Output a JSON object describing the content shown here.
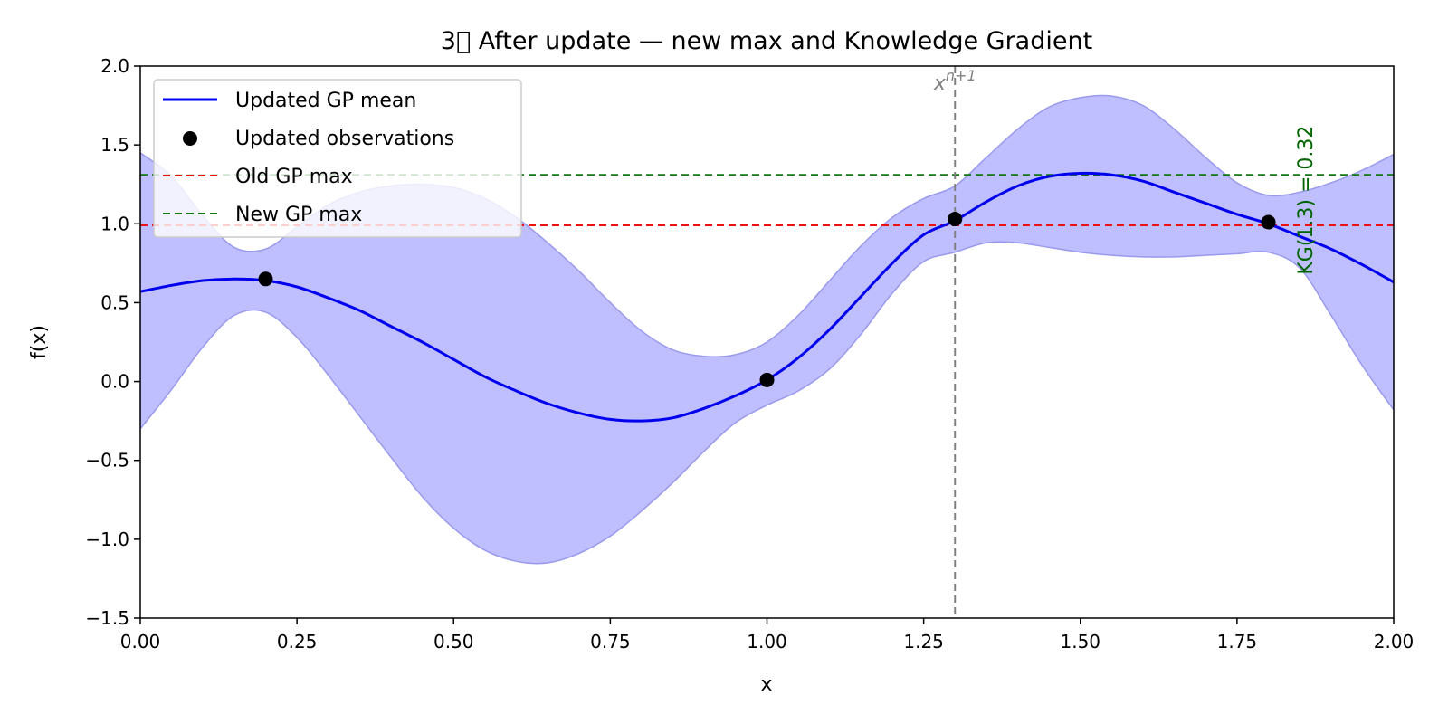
{
  "chart_data": {
    "type": "line",
    "title": "3⃣ After update — new max and Knowledge Gradient",
    "xlabel": "x",
    "ylabel": "f(x)",
    "xlim": [
      0.0,
      2.0
    ],
    "ylim": [
      -1.5,
      2.0
    ],
    "x_ticks": [
      "0.00",
      "0.25",
      "0.50",
      "0.75",
      "1.00",
      "1.25",
      "1.50",
      "1.75",
      "2.00"
    ],
    "x_tick_values": [
      0.0,
      0.25,
      0.5,
      0.75,
      1.0,
      1.25,
      1.5,
      1.75,
      2.0
    ],
    "y_ticks": [
      "−1.5",
      "−1.0",
      "−0.5",
      "0.0",
      "0.5",
      "1.0",
      "1.5",
      "2.0"
    ],
    "y_tick_values": [
      -1.5,
      -1.0,
      -0.5,
      0.0,
      0.5,
      1.0,
      1.5,
      2.0
    ],
    "grid": false,
    "legend_position": "upper-left",
    "legend": [
      {
        "label": "Updated GP mean",
        "kind": "line",
        "color": "#0000ee"
      },
      {
        "label": "Updated observations",
        "kind": "marker",
        "color": "#000000"
      },
      {
        "label": "Old GP max",
        "kind": "dashed",
        "color": "#ee1111"
      },
      {
        "label": "New GP max",
        "kind": "dashed",
        "color": "#117711"
      }
    ],
    "series": [
      {
        "name": "Updated GP mean",
        "color": "#0000ee",
        "x": [
          0.0,
          0.05,
          0.1,
          0.15,
          0.2,
          0.25,
          0.3,
          0.35,
          0.4,
          0.45,
          0.5,
          0.55,
          0.6,
          0.65,
          0.7,
          0.75,
          0.8,
          0.85,
          0.9,
          0.95,
          1.0,
          1.05,
          1.1,
          1.15,
          1.2,
          1.25,
          1.3,
          1.35,
          1.4,
          1.45,
          1.5,
          1.55,
          1.6,
          1.65,
          1.7,
          1.75,
          1.8,
          1.85,
          1.9,
          1.95,
          2.0
        ],
        "y": [
          0.57,
          0.61,
          0.64,
          0.65,
          0.64,
          0.6,
          0.53,
          0.45,
          0.35,
          0.25,
          0.14,
          0.03,
          -0.06,
          -0.14,
          -0.2,
          -0.24,
          -0.25,
          -0.23,
          -0.17,
          -0.09,
          0.01,
          0.15,
          0.33,
          0.54,
          0.75,
          0.93,
          1.02,
          1.14,
          1.24,
          1.3,
          1.32,
          1.31,
          1.27,
          1.2,
          1.13,
          1.06,
          1.0,
          0.92,
          0.84,
          0.74,
          0.63
        ]
      }
    ],
    "band": {
      "name": "confidence band",
      "color": "#bfbfff",
      "x": [
        0.0,
        0.05,
        0.1,
        0.15,
        0.2,
        0.25,
        0.3,
        0.35,
        0.4,
        0.45,
        0.5,
        0.55,
        0.6,
        0.65,
        0.7,
        0.75,
        0.8,
        0.85,
        0.9,
        0.95,
        1.0,
        1.05,
        1.1,
        1.15,
        1.2,
        1.25,
        1.3,
        1.35,
        1.4,
        1.45,
        1.5,
        1.55,
        1.6,
        1.65,
        1.7,
        1.75,
        1.8,
        1.85,
        1.9,
        1.95,
        2.0
      ],
      "upper": [
        1.45,
        1.3,
        1.05,
        0.85,
        0.84,
        0.98,
        1.12,
        1.2,
        1.24,
        1.25,
        1.23,
        1.16,
        1.04,
        0.88,
        0.7,
        0.5,
        0.32,
        0.2,
        0.16,
        0.17,
        0.25,
        0.42,
        0.64,
        0.86,
        1.04,
        1.16,
        1.24,
        1.42,
        1.6,
        1.74,
        1.8,
        1.81,
        1.75,
        1.6,
        1.42,
        1.26,
        1.18,
        1.2,
        1.26,
        1.34,
        1.44
      ],
      "lower": [
        -0.3,
        -0.05,
        0.22,
        0.42,
        0.44,
        0.28,
        0.04,
        -0.22,
        -0.48,
        -0.73,
        -0.93,
        -1.07,
        -1.14,
        -1.15,
        -1.09,
        -0.98,
        -0.82,
        -0.64,
        -0.44,
        -0.26,
        -0.15,
        -0.06,
        0.08,
        0.3,
        0.56,
        0.76,
        0.82,
        0.88,
        0.88,
        0.85,
        0.82,
        0.8,
        0.79,
        0.79,
        0.8,
        0.81,
        0.82,
        0.72,
        0.42,
        0.1,
        -0.18
      ]
    },
    "observations": {
      "name": "Updated observations",
      "x": [
        0.2,
        1.0,
        1.3,
        1.8
      ],
      "y": [
        0.65,
        0.01,
        1.03,
        1.01
      ]
    },
    "hlines": [
      {
        "name": "Old GP max",
        "y": 0.99,
        "color": "#ee1111"
      },
      {
        "name": "New GP max",
        "y": 1.31,
        "color": "#117711"
      }
    ],
    "vline": {
      "x": 1.3,
      "color": "#808080",
      "label": "x",
      "label_sup": "n+1"
    },
    "annotations": [
      {
        "text": "KG(1.3) = 0.32",
        "x": 1.87,
        "y": 1.15,
        "rotation": -90,
        "color": "#006400"
      }
    ]
  }
}
